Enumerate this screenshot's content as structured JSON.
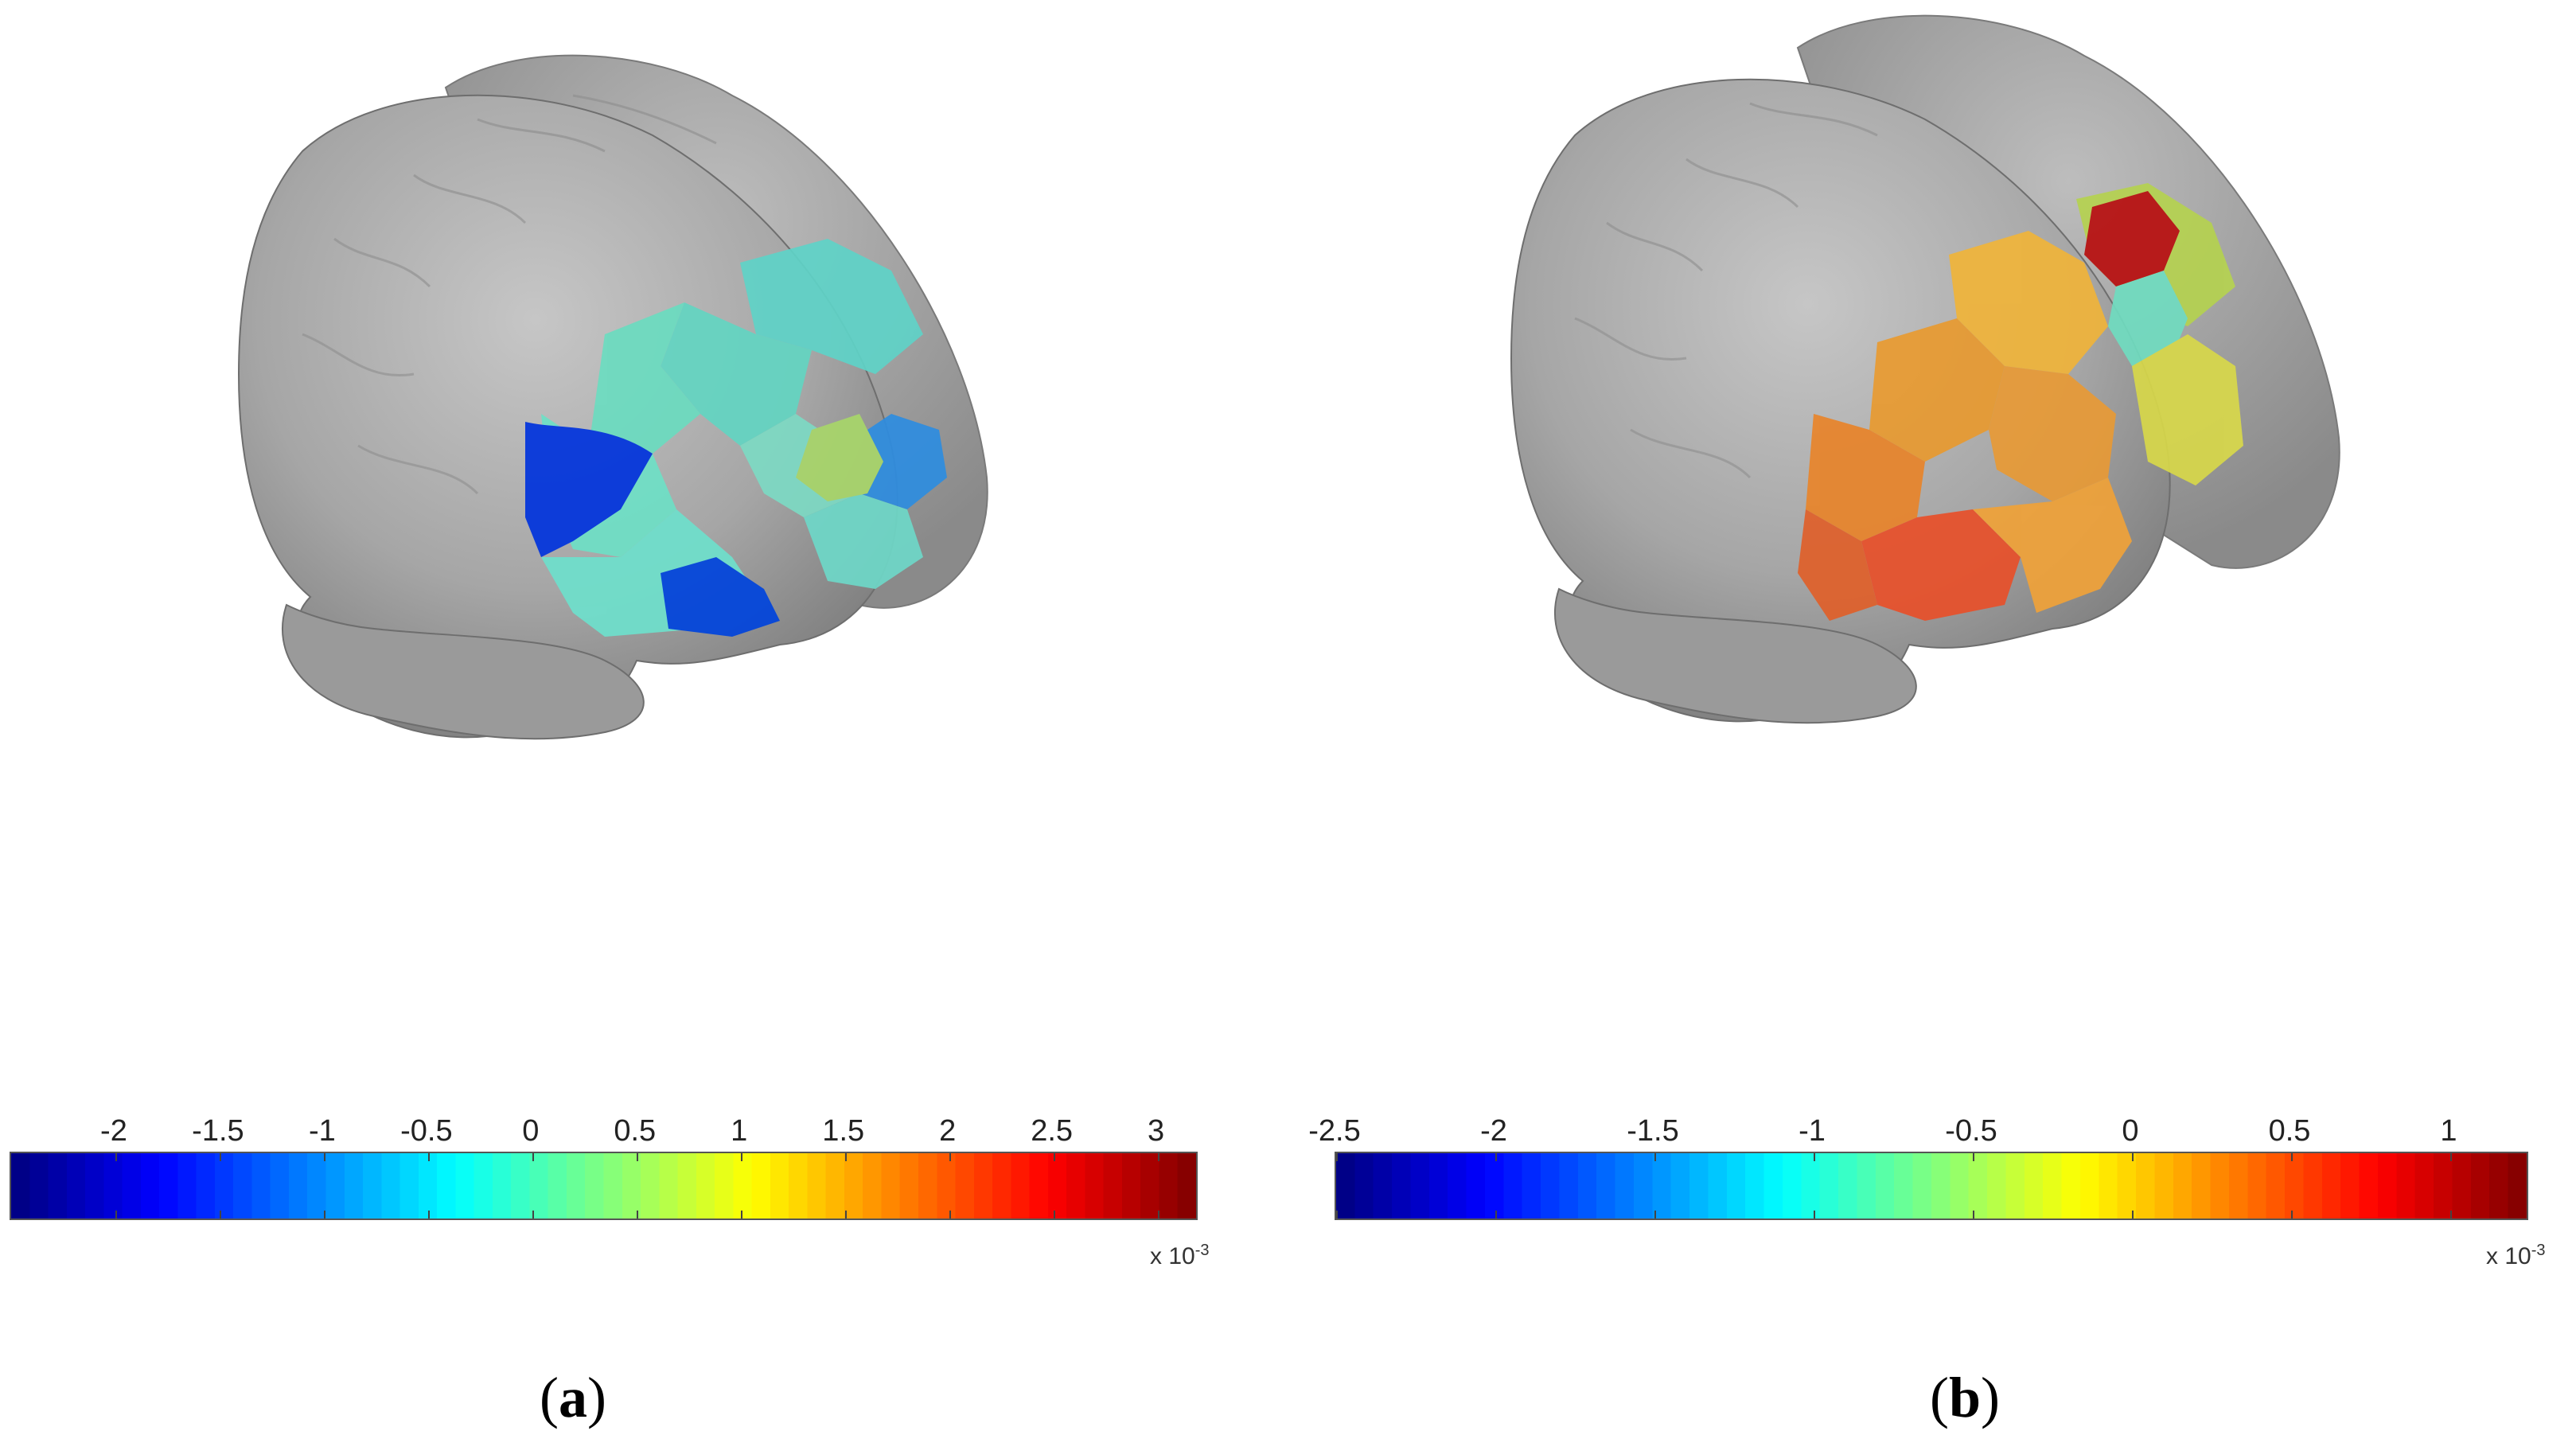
{
  "panels": [
    {
      "id": "a",
      "caption_letter": "a",
      "colorbar": {
        "ticks": [
          "-2",
          "-1.5",
          "-1",
          "-0.5",
          "0",
          "0.5",
          "1",
          "1.5",
          "2",
          "2.5",
          "3"
        ],
        "tick_values": [
          -2,
          -1.5,
          -1,
          -0.5,
          0,
          0.5,
          1,
          1.5,
          2,
          2.5,
          3
        ],
        "min": -2.5,
        "max": 3.2,
        "multiplier_text": "x 10",
        "multiplier_exponent": "-3",
        "colormap": "jet"
      }
    },
    {
      "id": "b",
      "caption_letter": "b",
      "colorbar": {
        "ticks": [
          "-2.5",
          "-2",
          "-1.5",
          "-1",
          "-0.5",
          "0",
          "0.5",
          "1"
        ],
        "tick_values": [
          -2.5,
          -2,
          -1.5,
          -1,
          -0.5,
          0,
          0.5,
          1
        ],
        "min": -2.5,
        "max": 1.25,
        "multiplier_text": "x 10",
        "multiplier_exponent": "-3",
        "colormap": "jet"
      }
    }
  ],
  "colors": {
    "brain_surface": "#a9a9a9",
    "background": "#ffffff"
  }
}
